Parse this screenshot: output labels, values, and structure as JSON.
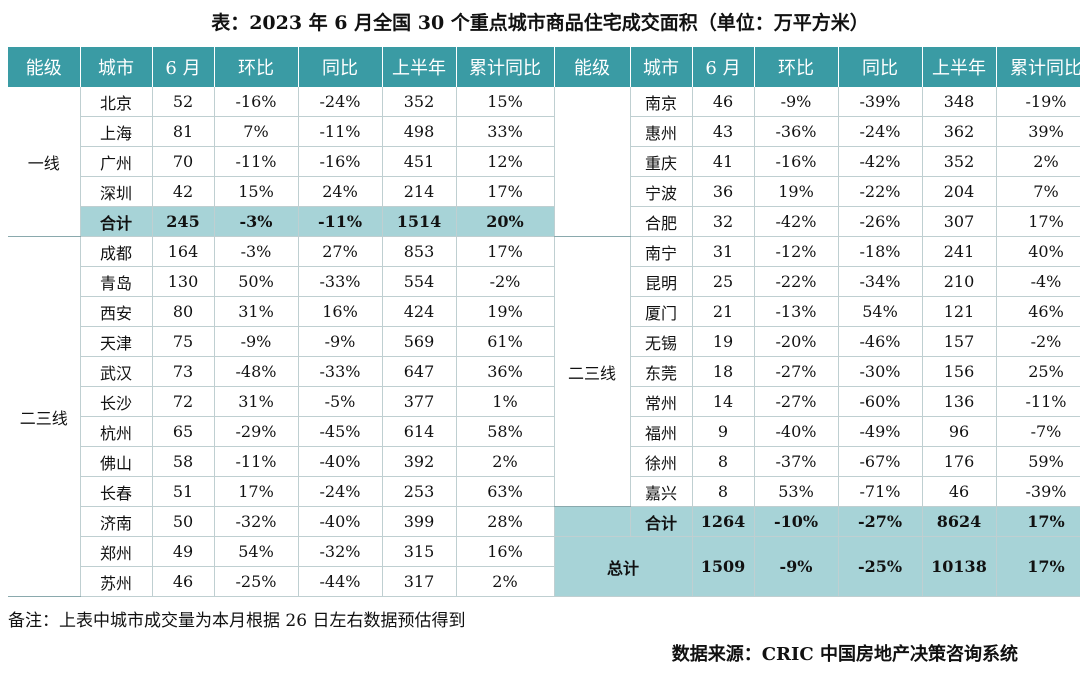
{
  "title": "表：2023 年 6 月全国 30 个重点城市商品住宅成交面积（单位：万平方米）",
  "headers": [
    "能级",
    "城市",
    "6 月",
    "环比",
    "同比",
    "上半年",
    "累计同比",
    "能级",
    "城市",
    "6 月",
    "环比",
    "同比",
    "上半年",
    "累计同比"
  ],
  "left": {
    "tier1_label": "一线",
    "tier23_label": "二三线",
    "tier1_rows": [
      [
        "北京",
        "52",
        "-16%",
        "-24%",
        "352",
        "15%"
      ],
      [
        "上海",
        "81",
        "7%",
        "-11%",
        "498",
        "33%"
      ],
      [
        "广州",
        "70",
        "-11%",
        "-16%",
        "451",
        "12%"
      ],
      [
        "深圳",
        "42",
        "15%",
        "24%",
        "214",
        "17%"
      ]
    ],
    "tier1_total": [
      "合计",
      "245",
      "-3%",
      "-11%",
      "1514",
      "20%"
    ],
    "tier23_rows": [
      [
        "成都",
        "164",
        "-3%",
        "27%",
        "853",
        "17%"
      ],
      [
        "青岛",
        "130",
        "50%",
        "-33%",
        "554",
        "-2%"
      ],
      [
        "西安",
        "80",
        "31%",
        "16%",
        "424",
        "19%"
      ],
      [
        "天津",
        "75",
        "-9%",
        "-9%",
        "569",
        "61%"
      ],
      [
        "武汉",
        "73",
        "-48%",
        "-33%",
        "647",
        "36%"
      ],
      [
        "长沙",
        "72",
        "31%",
        "-5%",
        "377",
        "1%"
      ],
      [
        "杭州",
        "65",
        "-29%",
        "-45%",
        "614",
        "58%"
      ],
      [
        "佛山",
        "58",
        "-11%",
        "-40%",
        "392",
        "2%"
      ],
      [
        "长春",
        "51",
        "17%",
        "-24%",
        "253",
        "63%"
      ],
      [
        "济南",
        "50",
        "-32%",
        "-40%",
        "399",
        "28%"
      ],
      [
        "郑州",
        "49",
        "54%",
        "-32%",
        "315",
        "16%"
      ],
      [
        "苏州",
        "46",
        "-25%",
        "-44%",
        "317",
        "2%"
      ]
    ]
  },
  "right": {
    "tier23_label": "二三线",
    "rows": [
      [
        "南京",
        "46",
        "-9%",
        "-39%",
        "348",
        "-19%"
      ],
      [
        "惠州",
        "43",
        "-36%",
        "-24%",
        "362",
        "39%"
      ],
      [
        "重庆",
        "41",
        "-16%",
        "-42%",
        "352",
        "2%"
      ],
      [
        "宁波",
        "36",
        "19%",
        "-22%",
        "204",
        "7%"
      ],
      [
        "合肥",
        "32",
        "-42%",
        "-26%",
        "307",
        "17%"
      ],
      [
        "南宁",
        "31",
        "-12%",
        "-18%",
        "241",
        "40%"
      ],
      [
        "昆明",
        "25",
        "-22%",
        "-34%",
        "210",
        "-4%"
      ],
      [
        "厦门",
        "21",
        "-13%",
        "54%",
        "121",
        "46%"
      ],
      [
        "无锡",
        "19",
        "-20%",
        "-46%",
        "157",
        "-2%"
      ],
      [
        "东莞",
        "18",
        "-27%",
        "-30%",
        "156",
        "25%"
      ],
      [
        "常州",
        "14",
        "-27%",
        "-60%",
        "136",
        "-11%"
      ],
      [
        "福州",
        "9",
        "-40%",
        "-49%",
        "96",
        "-7%"
      ],
      [
        "徐州",
        "8",
        "-37%",
        "-67%",
        "176",
        "59%"
      ],
      [
        "嘉兴",
        "8",
        "53%",
        "-71%",
        "46",
        "-39%"
      ]
    ],
    "tier23_total": [
      "合计",
      "1264",
      "-10%",
      "-27%",
      "8624",
      "17%"
    ],
    "grand_total": [
      "总计",
      "1509",
      "-9%",
      "-25%",
      "10138",
      "17%"
    ]
  },
  "note": "备注：上表中城市成交量为本月根据 26 日左右数据预估得到",
  "source": "数据来源：CRIC 中国房地产决策咨询系统",
  "colors": {
    "header_bg": "#3a9ba4",
    "total_bg": "#a7d3d7"
  }
}
